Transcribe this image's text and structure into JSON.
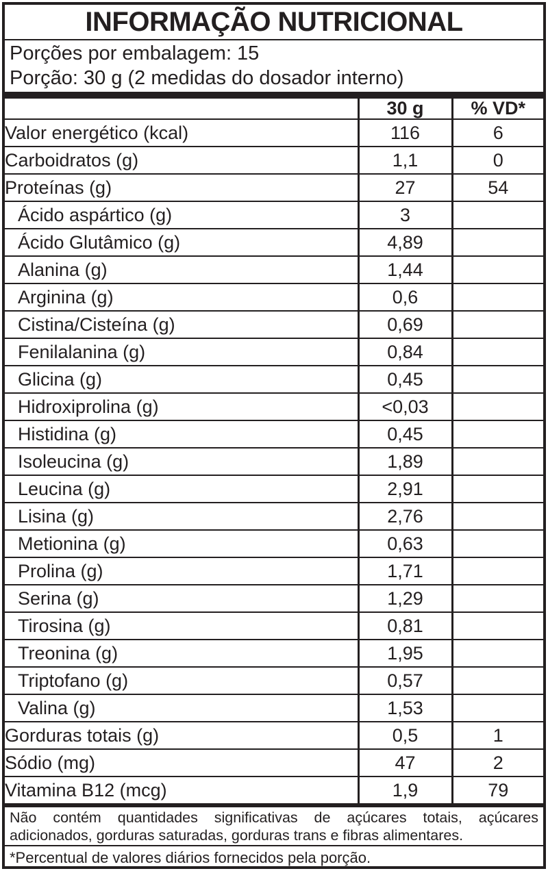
{
  "header": {
    "title": "INFORMAÇÃO NUTRICIONAL",
    "servings_per_package": "Porções por embalagem: 15",
    "serving_size": "Porção: 30 g (2 medidas do dosador interno)"
  },
  "table": {
    "columns": [
      "",
      "30 g",
      "% VD*"
    ],
    "rows": [
      {
        "label": "Valor energético (kcal)",
        "amount": "116",
        "vd": "6",
        "indent": false
      },
      {
        "label": "Carboidratos (g)",
        "amount": "1,1",
        "vd": "0",
        "indent": false
      },
      {
        "label": "Proteínas (g)",
        "amount": "27",
        "vd": "54",
        "indent": false
      },
      {
        "label": "Ácido aspártico (g)",
        "amount": "3",
        "vd": "",
        "indent": true
      },
      {
        "label": "Ácido Glutâmico (g)",
        "amount": "4,89",
        "vd": "",
        "indent": true
      },
      {
        "label": "Alanina (g)",
        "amount": "1,44",
        "vd": "",
        "indent": true
      },
      {
        "label": "Arginina (g)",
        "amount": "0,6",
        "vd": "",
        "indent": true
      },
      {
        "label": "Cistina/Cisteína (g)",
        "amount": "0,69",
        "vd": "",
        "indent": true
      },
      {
        "label": "Fenilalanina (g)",
        "amount": "0,84",
        "vd": "",
        "indent": true
      },
      {
        "label": "Glicina (g)",
        "amount": "0,45",
        "vd": "",
        "indent": true
      },
      {
        "label": "Hidroxiprolina (g)",
        "amount": "<0,03",
        "vd": "",
        "indent": true
      },
      {
        "label": "Histidina (g)",
        "amount": "0,45",
        "vd": "",
        "indent": true
      },
      {
        "label": "Isoleucina (g)",
        "amount": "1,89",
        "vd": "",
        "indent": true
      },
      {
        "label": "Leucina (g)",
        "amount": "2,91",
        "vd": "",
        "indent": true
      },
      {
        "label": "Lisina (g)",
        "amount": "2,76",
        "vd": "",
        "indent": true
      },
      {
        "label": "Metionina (g)",
        "amount": "0,63",
        "vd": "",
        "indent": true
      },
      {
        "label": "Prolina (g)",
        "amount": "1,71",
        "vd": "",
        "indent": true
      },
      {
        "label": "Serina (g)",
        "amount": "1,29",
        "vd": "",
        "indent": true
      },
      {
        "label": "Tirosina (g)",
        "amount": "0,81",
        "vd": "",
        "indent": true
      },
      {
        "label": "Treonina (g)",
        "amount": "1,95",
        "vd": "",
        "indent": true
      },
      {
        "label": "Triptofano (g)",
        "amount": "0,57",
        "vd": "",
        "indent": true
      },
      {
        "label": "Valina (g)",
        "amount": "1,53",
        "vd": "",
        "indent": true
      },
      {
        "label": "Gorduras totais (g)",
        "amount": "0,5",
        "vd": "1",
        "indent": false
      },
      {
        "label": "Sódio (mg)",
        "amount": "47",
        "vd": "2",
        "indent": false
      },
      {
        "label": "Vitamina B12 (mcg)",
        "amount": "1,9",
        "vd": "79",
        "indent": false
      }
    ]
  },
  "footnotes": {
    "no_significant_amounts": "Não contém quantidades significativas de açúcares totais, açúcares adicionados, gorduras saturadas, gorduras trans e fibras alimentares.",
    "percent_daily_values": "*Percentual de valores diários fornecidos pela porção."
  },
  "colors": {
    "text": "#231f20",
    "border": "#231f20",
    "background": "#ffffff"
  }
}
